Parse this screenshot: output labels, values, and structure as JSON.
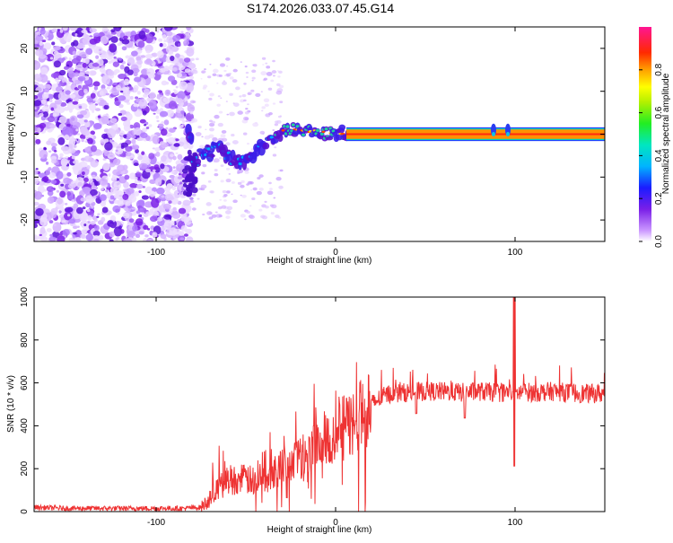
{
  "chart_data": [
    {
      "type": "heatmap",
      "title": "S174.2026.033.07.45.G14",
      "xlabel": "Height of straight line (km)",
      "ylabel": "Frequency (Hz)",
      "xlim": [
        -168,
        150
      ],
      "ylim": [
        -25,
        25
      ],
      "xticks": [
        -100,
        0,
        100
      ],
      "yticks": [
        -20,
        -10,
        0,
        10,
        20
      ],
      "colorbar": {
        "label": "Normalized spectral amplitude",
        "range": [
          0,
          1
        ],
        "ticks": [
          0.0,
          0.2,
          0.4,
          0.6,
          0.8
        ]
      },
      "ridge": {
        "x": [
          -80,
          -75,
          -70,
          -65,
          -60,
          -55,
          -50,
          -45,
          -40,
          -35,
          -30,
          -25,
          -20,
          -15,
          -10,
          -5,
          0,
          5,
          10,
          50,
          88,
          92,
          96,
          100,
          150
        ],
        "y": [
          -7,
          -5,
          -4,
          -3,
          -5,
          -7,
          -6,
          -4,
          -3,
          -1,
          0.8,
          1.2,
          1.0,
          0.5,
          1.0,
          0.3,
          0.2,
          0.0,
          0.0,
          0.0,
          0.0,
          0.3,
          0.0,
          0.0,
          0.0
        ]
      }
    },
    {
      "type": "line",
      "xlabel": "Height of straight line (km)",
      "ylabel": "SNR (10 * v/v)",
      "xlim": [
        -168,
        150
      ],
      "ylim": [
        0,
        1000
      ],
      "xticks": [
        -100,
        0,
        100
      ],
      "yticks": [
        0,
        200,
        400,
        600,
        800,
        1000
      ],
      "series": [
        {
          "name": "SNR",
          "color": "#ee3333",
          "x": [
            -168,
            -150,
            -120,
            -100,
            -85,
            -75,
            -70,
            -65,
            -60,
            -55,
            -50,
            -45,
            -40,
            -35,
            -30,
            -25,
            -20,
            -15,
            -10,
            -5,
            0,
            5,
            10,
            15,
            20,
            25,
            30,
            40,
            50,
            60,
            70,
            80,
            90,
            95,
            100,
            105,
            110,
            120,
            130,
            140,
            150
          ],
          "y": [
            20,
            15,
            15,
            15,
            15,
            20,
            60,
            110,
            150,
            150,
            150,
            140,
            150,
            190,
            215,
            235,
            260,
            300,
            330,
            360,
            380,
            390,
            420,
            460,
            500,
            530,
            550,
            555,
            560,
            560,
            555,
            560,
            555,
            555,
            550,
            560,
            555,
            560,
            555,
            550,
            550
          ]
        }
      ]
    }
  ]
}
